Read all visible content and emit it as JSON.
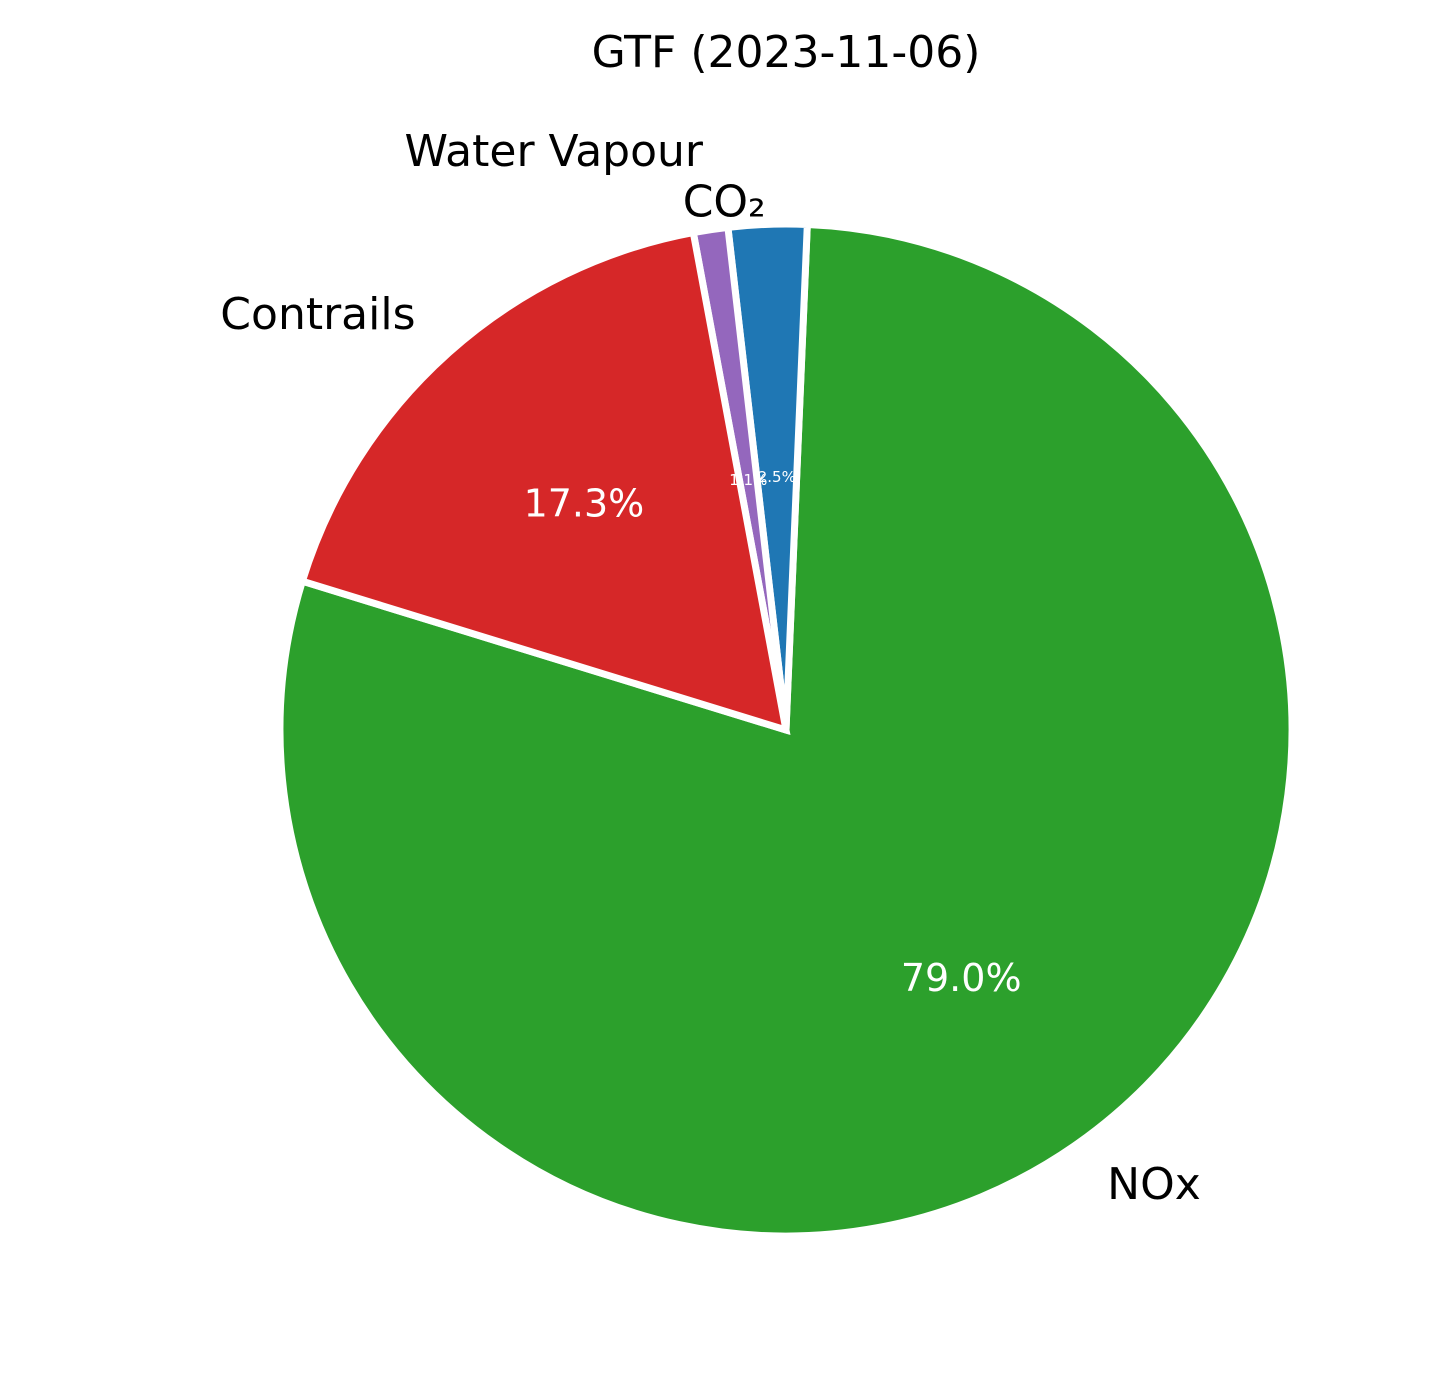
{
  "chart_data": {
    "type": "pie",
    "title": "GTF (2023-11-06)",
    "slices": [
      {
        "label": "NOx",
        "value": 79.0,
        "pct_label": "79.0%",
        "color": "#2ca02c"
      },
      {
        "label": "CO₂",
        "value": 2.5,
        "pct_label": "2.5%",
        "color": "#1f77b4"
      },
      {
        "label": "Water Vapour",
        "value": 1.1,
        "pct_label": "1.1%",
        "color": "#9467bd"
      },
      {
        "label": "Contrails",
        "value": 17.3,
        "pct_label": "17.3%",
        "color": "#d62728"
      }
    ]
  }
}
